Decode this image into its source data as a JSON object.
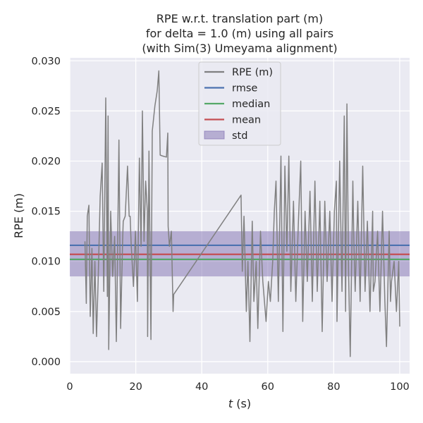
{
  "chart_data": {
    "type": "line",
    "title_lines": [
      "RPE w.r.t. translation part (m)",
      "for delta = 1.0 (m) using all pairs",
      "(with Sim(3) Umeyama alignment)"
    ],
    "xlabel_italic": "t",
    "xlabel_rest": " (s)",
    "ylabel": "RPE (m)",
    "xlim": [
      0,
      103
    ],
    "ylim": [
      -0.0012,
      0.0303
    ],
    "x_ticks": [
      0,
      20,
      40,
      60,
      80,
      100
    ],
    "x_tick_labels": [
      "0",
      "20",
      "40",
      "60",
      "80",
      "100"
    ],
    "y_ticks": [
      0.0,
      0.005,
      0.01,
      0.015,
      0.02,
      0.025,
      0.03
    ],
    "y_tick_labels": [
      "0.000",
      "0.005",
      "0.010",
      "0.015",
      "0.020",
      "0.025",
      "0.030"
    ],
    "grid": true,
    "legend_position": "top-center",
    "legend": [
      {
        "label": "RPE (m)",
        "kind": "line",
        "color": "#808080"
      },
      {
        "label": "rmse",
        "kind": "line",
        "color": "#4c72b0"
      },
      {
        "label": "median",
        "kind": "line",
        "color": "#55a868"
      },
      {
        "label": "mean",
        "kind": "line",
        "color": "#c44e52"
      },
      {
        "label": "std",
        "kind": "patch",
        "color": "#8172b2"
      }
    ],
    "stats": {
      "rmse": 0.0116,
      "median": 0.0102,
      "mean": 0.0107,
      "std_low": 0.0085,
      "std_high": 0.013
    },
    "series_anchors": [
      [
        4.6,
        0.012
      ],
      [
        5.0,
        0.0058
      ],
      [
        5.3,
        0.0145
      ],
      [
        5.8,
        0.0156
      ],
      [
        6.2,
        0.0045
      ],
      [
        6.7,
        0.0113
      ],
      [
        7.1,
        0.0028
      ],
      [
        7.6,
        0.01
      ],
      [
        8.1,
        0.0025
      ],
      [
        8.6,
        0.008
      ],
      [
        9.2,
        0.0165
      ],
      [
        9.8,
        0.0198
      ],
      [
        10.3,
        0.007
      ],
      [
        10.9,
        0.0263
      ],
      [
        11.4,
        0.0065
      ],
      [
        11.8,
        0.0012
      ],
      [
        12.4,
        0.015
      ],
      [
        13.0,
        0.0085
      ],
      [
        13.6,
        0.0125
      ],
      [
        14.3,
        0.006
      ],
      [
        14.9,
        0.0221
      ],
      [
        15.4,
        0.0033
      ],
      [
        16.0,
        0.012
      ],
      [
        16.8,
        0.0145
      ],
      [
        17.5,
        0.0195
      ],
      [
        18.0,
        0.0145
      ],
      [
        18.6,
        0.0118
      ],
      [
        19.3,
        0.0075
      ],
      [
        19.9,
        0.013
      ],
      [
        20.5,
        0.006
      ],
      [
        21.1,
        0.0203
      ],
      [
        21.6,
        0.0115
      ],
      [
        22.0,
        0.025
      ],
      [
        22.5,
        0.012
      ],
      [
        23.0,
        0.018
      ],
      [
        23.6,
        0.0025
      ],
      [
        24.0,
        0.021
      ],
      [
        24.6,
        0.0022
      ],
      [
        25.0,
        0.023
      ],
      [
        25.8,
        0.0255
      ],
      [
        26.5,
        0.027
      ],
      [
        27.0,
        0.029
      ],
      [
        27.4,
        0.0206
      ],
      [
        28.2,
        0.0205
      ],
      [
        29.3,
        0.0204
      ],
      [
        29.7,
        0.0228
      ],
      [
        30.2,
        0.0115
      ],
      [
        30.8,
        0.013
      ],
      [
        31.3,
        0.005
      ],
      [
        31.5,
        0.0067
      ],
      [
        51.9,
        0.0166
      ],
      [
        52.3,
        0.009
      ],
      [
        52.8,
        0.0145
      ],
      [
        53.5,
        0.005
      ],
      [
        54.0,
        0.01
      ],
      [
        54.6,
        0.002
      ],
      [
        55.3,
        0.014
      ],
      [
        55.8,
        0.006
      ],
      [
        56.5,
        0.01
      ],
      [
        57.0,
        0.0033
      ],
      [
        57.8,
        0.013
      ],
      [
        58.5,
        0.008
      ],
      [
        59.5,
        0.004
      ],
      [
        60.8,
        0.006
      ],
      [
        61.5,
        0.01
      ],
      [
        62.0,
        0.015
      ],
      [
        62.5,
        0.018
      ],
      [
        63.2,
        0.006
      ],
      [
        64.0,
        0.0205
      ],
      [
        64.6,
        0.003
      ],
      [
        65.2,
        0.0195
      ],
      [
        65.8,
        0.011
      ],
      [
        66.4,
        0.0205
      ],
      [
        67.0,
        0.007
      ],
      [
        67.8,
        0.016
      ],
      [
        68.5,
        0.006
      ],
      [
        69.3,
        0.014
      ],
      [
        70.0,
        0.02
      ],
      [
        70.6,
        0.004
      ],
      [
        71.3,
        0.015
      ],
      [
        72.0,
        0.008
      ],
      [
        72.8,
        0.017
      ],
      [
        73.5,
        0.006
      ],
      [
        74.3,
        0.018
      ],
      [
        75.0,
        0.007
      ],
      [
        75.8,
        0.016
      ],
      [
        76.5,
        0.003
      ],
      [
        77.3,
        0.016
      ],
      [
        78.0,
        0.008
      ],
      [
        78.8,
        0.015
      ],
      [
        79.5,
        0.006
      ],
      [
        80.2,
        0.015
      ],
      [
        81.0,
        0.004
      ],
      [
        81.8,
        0.02
      ],
      [
        82.5,
        0.007
      ],
      [
        83.2,
        0.0245
      ],
      [
        83.6,
        0.005
      ],
      [
        84.0,
        0.0257
      ],
      [
        84.5,
        0.009
      ],
      [
        85.0,
        0.0005
      ],
      [
        85.8,
        0.018
      ],
      [
        86.5,
        0.007
      ],
      [
        87.3,
        0.016
      ],
      [
        88.0,
        0.006
      ],
      [
        88.8,
        0.0195
      ],
      [
        89.5,
        0.007
      ],
      [
        90.2,
        0.014
      ],
      [
        91.0,
        0.005
      ],
      [
        91.8,
        0.015
      ],
      [
        92.5,
        0.008
      ],
      [
        93.3,
        0.013
      ],
      [
        94.0,
        0.005
      ],
      [
        94.8,
        0.015
      ],
      [
        95.5,
        0.006
      ],
      [
        96.0,
        0.0015
      ],
      [
        96.8,
        0.013
      ],
      [
        97.5,
        0.008
      ],
      [
        98.3,
        0.01
      ],
      [
        99.0,
        0.005
      ],
      [
        99.7,
        0.01
      ]
    ],
    "series_interp": [
      [
        11.6,
        0.0245
      ],
      [
        14.1,
        0.002
      ],
      [
        16.2,
        0.014
      ],
      [
        18.3,
        0.0145
      ],
      [
        23.5,
        0.015
      ],
      [
        29.8,
        0.0135
      ],
      [
        60.2,
        0.008
      ],
      [
        80.8,
        0.018
      ],
      [
        86.1,
        0.012
      ],
      [
        92.0,
        0.007
      ],
      [
        97.2,
        0.006
      ],
      [
        100.0,
        0.0035
      ]
    ]
  }
}
